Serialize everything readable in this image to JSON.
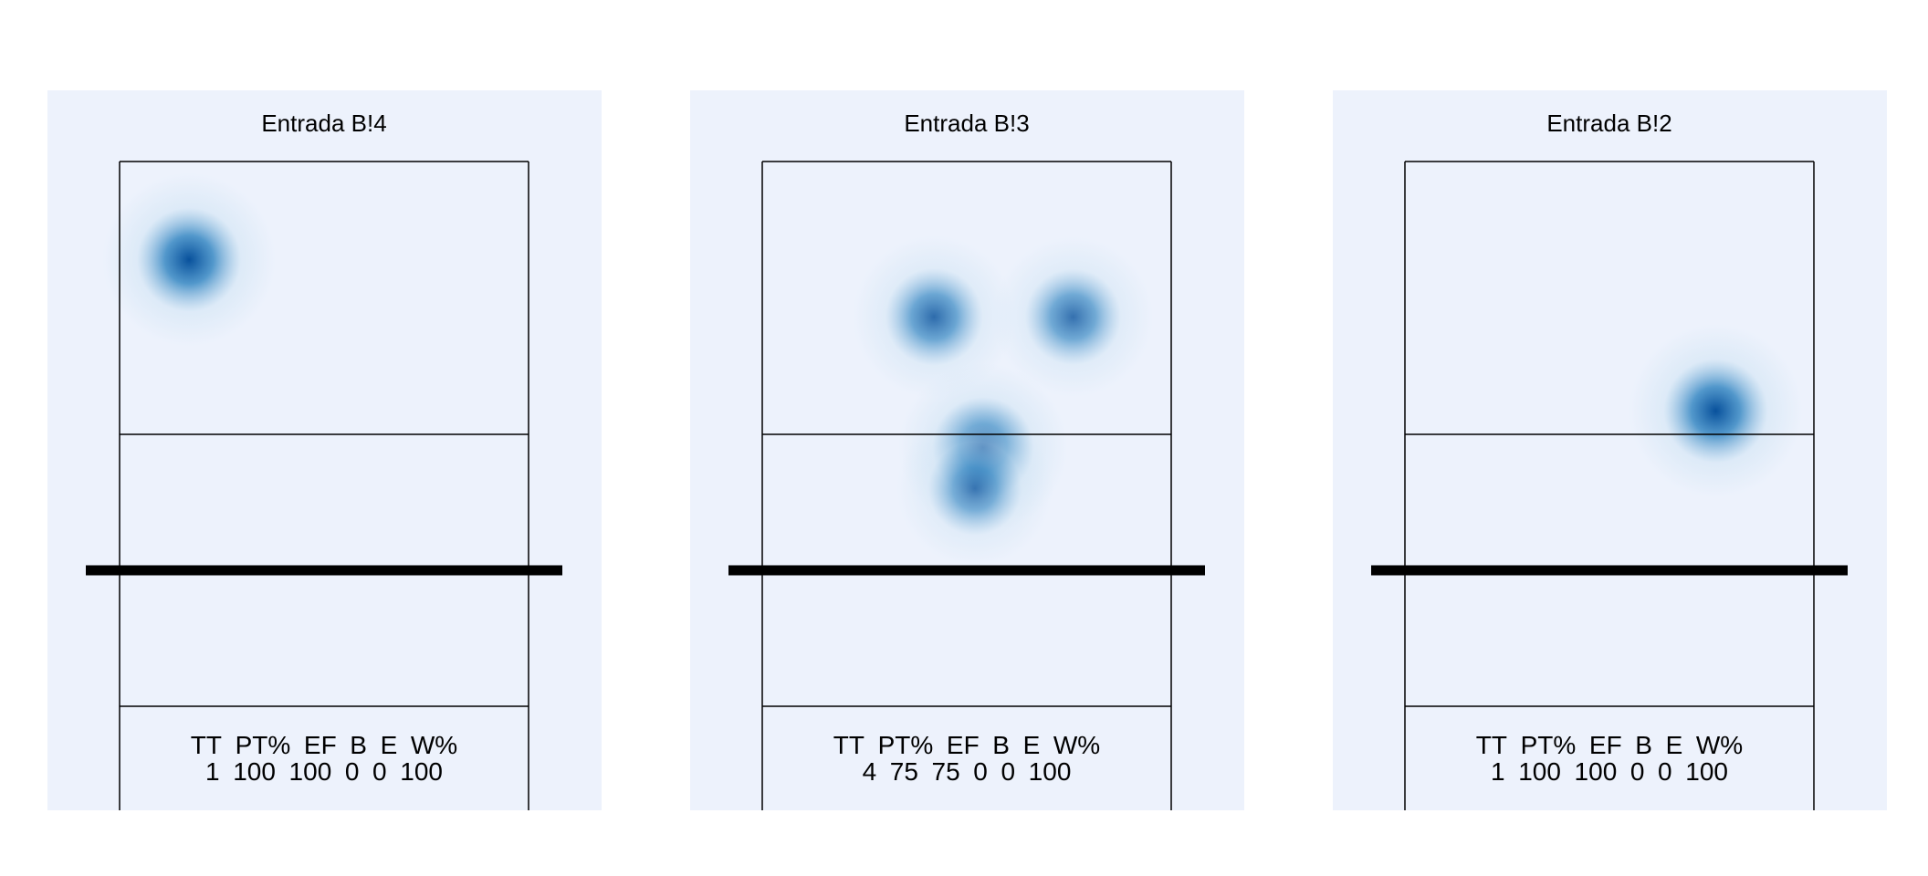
{
  "chart_data": [
    {
      "type": "heatmap",
      "title": "Entrada B!4",
      "stats": {
        "header": [
          "TT",
          "PT%",
          "EF",
          "B",
          "E",
          "W%"
        ],
        "values": [
          "1",
          "100",
          "100",
          "0",
          "0",
          "100"
        ]
      },
      "hotspots": [
        {
          "x": 0.17,
          "y": 0.76,
          "intensity": 1.0
        }
      ]
    },
    {
      "type": "heatmap",
      "title": "Entrada B!3",
      "stats": {
        "header": [
          "TT",
          "PT%",
          "EF",
          "B",
          "E",
          "W%"
        ],
        "values": [
          "4",
          "75",
          "75",
          "0",
          "0",
          "100"
        ]
      },
      "hotspots": [
        {
          "x": 0.42,
          "y": 0.62,
          "intensity": 0.75
        },
        {
          "x": 0.76,
          "y": 0.62,
          "intensity": 0.7
        },
        {
          "x": 0.54,
          "y": 0.3,
          "intensity": 0.9
        },
        {
          "x": 0.52,
          "y": 0.2,
          "intensity": 0.6
        }
      ]
    },
    {
      "type": "heatmap",
      "title": "Entrada B!2",
      "stats": {
        "header": [
          "TT",
          "PT%",
          "EF",
          "B",
          "E",
          "W%"
        ],
        "values": [
          "1",
          "100",
          "100",
          "0",
          "0",
          "100"
        ]
      },
      "hotspots": [
        {
          "x": 0.76,
          "y": 0.39,
          "intensity": 1.0
        }
      ]
    }
  ],
  "colors": {
    "panel_bg": "#edf2fc",
    "heat_low": "#d0e4f4",
    "heat_mid": "#4a93c9",
    "heat_high": "#08519c",
    "lines": "#000000"
  }
}
